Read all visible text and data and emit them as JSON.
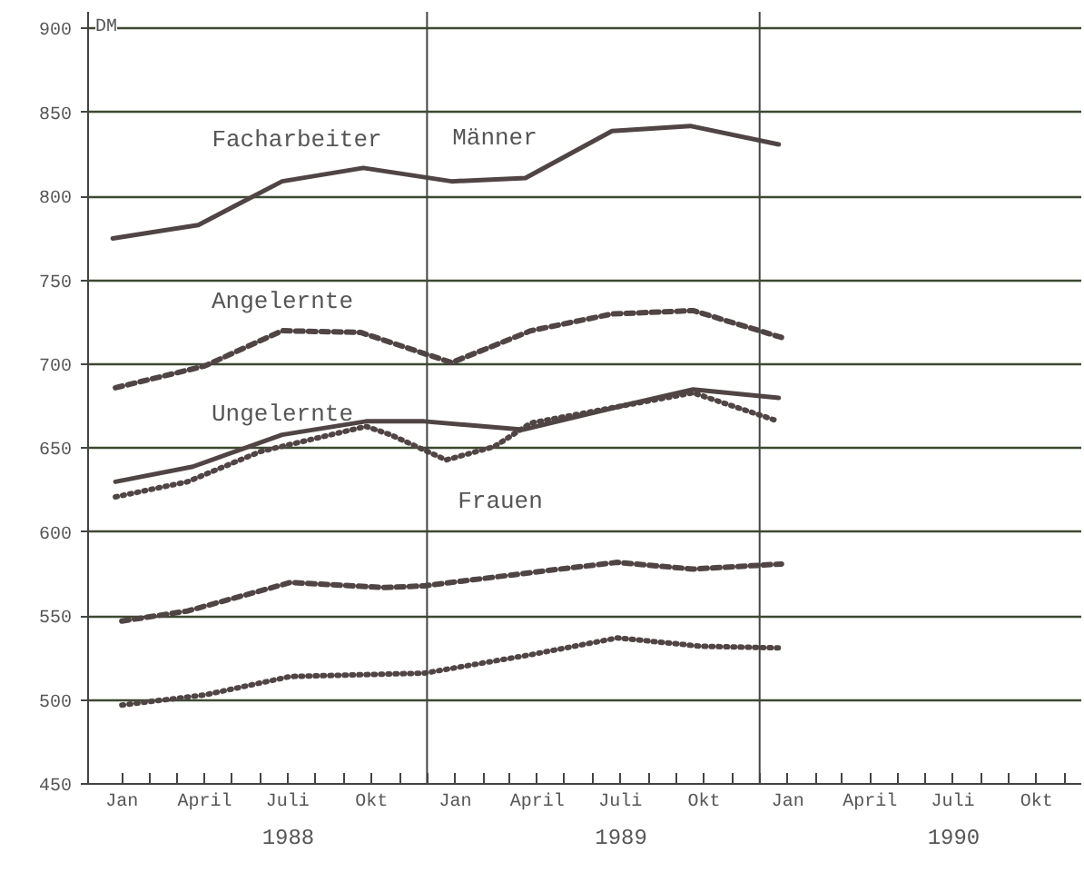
{
  "chart_data": {
    "type": "line",
    "ylabel": "DM",
    "xlim": [
      "1987-11-25",
      "1990-11-19"
    ],
    "ylim": [
      450,
      910
    ],
    "yticks": [
      450,
      500,
      550,
      600,
      650,
      700,
      750,
      800,
      850,
      900
    ],
    "xticks": [
      {
        "value": "1988-01",
        "label": "Jan"
      },
      {
        "value": "1988-02",
        "label": null
      },
      {
        "value": "1988-03",
        "label": null
      },
      {
        "value": "1988-04",
        "label": "April"
      },
      {
        "value": "1988-05",
        "label": null
      },
      {
        "value": "1988-06",
        "label": null
      },
      {
        "value": "1988-07",
        "label": "Juli"
      },
      {
        "value": "1988-08",
        "label": null
      },
      {
        "value": "1988-09",
        "label": null
      },
      {
        "value": "1988-10",
        "label": "Okt"
      },
      {
        "value": "1988-11",
        "label": null
      },
      {
        "value": "1988-12",
        "label": null
      },
      {
        "value": "1989-01",
        "label": "Jan"
      },
      {
        "value": "1989-02",
        "label": null
      },
      {
        "value": "1989-03",
        "label": null
      },
      {
        "value": "1989-04",
        "label": "April"
      },
      {
        "value": "1989-05",
        "label": null
      },
      {
        "value": "1989-06",
        "label": null
      },
      {
        "value": "1989-07",
        "label": "Juli"
      },
      {
        "value": "1989-08",
        "label": null
      },
      {
        "value": "1989-09",
        "label": null
      },
      {
        "value": "1989-10",
        "label": "Okt"
      },
      {
        "value": "1989-11",
        "label": null
      },
      {
        "value": "1989-12",
        "label": null
      },
      {
        "value": "1990-01",
        "label": "Jan"
      },
      {
        "value": "1990-02",
        "label": null
      },
      {
        "value": "1990-03",
        "label": null
      },
      {
        "value": "1990-04",
        "label": "April"
      },
      {
        "value": "1990-05",
        "label": null
      },
      {
        "value": "1990-06",
        "label": null
      },
      {
        "value": "1990-07",
        "label": "Juli"
      },
      {
        "value": "1990-08",
        "label": null
      },
      {
        "value": "1990-09",
        "label": null
      },
      {
        "value": "1990-10",
        "label": "Okt"
      },
      {
        "value": "1990-11",
        "label": null
      }
    ],
    "grid": "y",
    "series": [
      {
        "color": "#504444",
        "line_style": "solid",
        "x": [
          "1987-12-22",
          "1988-03-25",
          "1988-06-25",
          "1988-09-22",
          "1988-12-28",
          "1989-03-19",
          "1989-06-22",
          "1989-09-16",
          "1989-12-22"
        ],
        "values": [
          775,
          783,
          809,
          817,
          809,
          811,
          839,
          842,
          831
        ]
      },
      {
        "color": "#504444",
        "line_style": "dashed",
        "x": [
          "1987-12-25",
          "1988-04-01",
          "1988-06-25",
          "1988-09-19",
          "1988-12-28",
          "1989-03-25",
          "1989-06-22",
          "1989-09-19",
          "1989-12-25"
        ],
        "values": [
          686,
          699,
          720,
          719,
          701,
          720,
          730,
          732,
          716
        ]
      },
      {
        "color": "#504444",
        "line_style": "solid",
        "x": [
          "1987-12-25",
          "1988-03-19",
          "1988-06-25",
          "1988-09-25",
          "1988-11-28",
          "1989-03-16",
          "1989-07-01",
          "1989-09-19",
          "1989-12-22"
        ],
        "values": [
          630,
          639,
          658,
          666,
          666,
          661,
          675,
          685,
          680
        ]
      },
      {
        "color": "#504444",
        "line_style": "dotted",
        "x": [
          "1987-12-25",
          "1988-03-13",
          "1988-06-01",
          "1988-09-25",
          "1988-10-22",
          "1988-12-22",
          "1989-02-13",
          "1989-03-25",
          "1989-07-01",
          "1989-09-19",
          "1989-12-22"
        ],
        "values": [
          621,
          630,
          648,
          663,
          658,
          643,
          651,
          665,
          675,
          683,
          666
        ]
      },
      {
        "color": "#504444",
        "line_style": "dashed",
        "x": [
          "1988-01-01",
          "1988-03-13",
          "1988-07-04",
          "1988-10-16",
          "1988-11-28",
          "1989-04-10",
          "1989-06-28",
          "1989-09-19",
          "1989-12-25"
        ],
        "values": [
          547,
          553,
          570,
          567,
          568,
          577,
          582,
          578,
          581
        ]
      },
      {
        "color": "#504444",
        "line_style": "dotted",
        "x": [
          "1988-01-01",
          "1988-04-01",
          "1988-07-04",
          "1988-11-28",
          "1989-03-25",
          "1989-06-28",
          "1989-09-28",
          "1989-12-25"
        ],
        "values": [
          497,
          503,
          514,
          516,
          527,
          537,
          532,
          531
        ]
      }
    ],
    "ref_lines": [
      {
        "axis": "x",
        "value": "1988-12-01"
      },
      {
        "axis": "x",
        "value": "1989-12-01"
      }
    ],
    "annotations": [
      "Facharbeiter",
      "Männer",
      "Angelernte",
      "Ungelernte",
      "Frauen",
      "1988",
      "1989",
      "1990"
    ]
  }
}
